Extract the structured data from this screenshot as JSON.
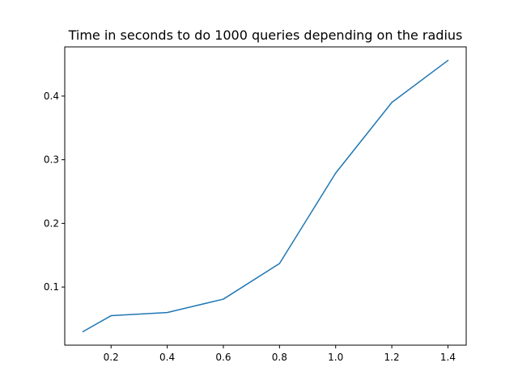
{
  "chart_data": {
    "type": "line",
    "title": "Time in seconds to do 1000 queries depending on the radius",
    "xlabel": "",
    "ylabel": "",
    "x": [
      0.1,
      0.2,
      0.4,
      0.6,
      0.8,
      1.0,
      1.2,
      1.4
    ],
    "series": [
      {
        "values": [
          0.03,
          0.055,
          0.06,
          0.081,
          0.137,
          0.279,
          0.39,
          0.456
        ],
        "color": "#1f77b4"
      }
    ],
    "xlim": [
      0.035,
      1.465
    ],
    "ylim": [
      0.0087,
      0.4773
    ],
    "xticks": [
      0.2,
      0.4,
      0.6,
      0.8,
      1.0,
      1.2,
      1.4
    ],
    "xtick_labels": [
      "0.2",
      "0.4",
      "0.6",
      "0.8",
      "1.0",
      "1.2",
      "1.4"
    ],
    "yticks": [
      0.1,
      0.2,
      0.3,
      0.4
    ],
    "ytick_labels": [
      "0.1",
      "0.2",
      "0.3",
      "0.4"
    ],
    "grid": false,
    "legend": "none"
  }
}
